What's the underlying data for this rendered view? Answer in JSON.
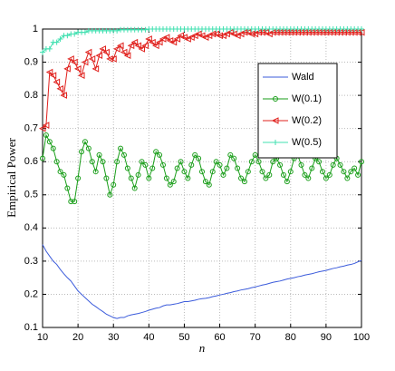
{
  "chart_data": {
    "type": "line",
    "x_label": "n",
    "y_label": "Empirical Power",
    "x": [
      10,
      11,
      12,
      13,
      14,
      15,
      16,
      17,
      18,
      19,
      20,
      21,
      22,
      23,
      24,
      25,
      26,
      27,
      28,
      29,
      30,
      31,
      32,
      33,
      34,
      35,
      36,
      37,
      38,
      39,
      40,
      41,
      42,
      43,
      44,
      45,
      46,
      47,
      48,
      49,
      50,
      51,
      52,
      53,
      54,
      55,
      56,
      57,
      58,
      59,
      60,
      61,
      62,
      63,
      64,
      65,
      66,
      67,
      68,
      69,
      70,
      71,
      72,
      73,
      74,
      75,
      76,
      77,
      78,
      79,
      80,
      81,
      82,
      83,
      84,
      85,
      86,
      87,
      88,
      89,
      90,
      91,
      92,
      93,
      94,
      95,
      96,
      97,
      98,
      99,
      100
    ],
    "series": [
      {
        "name": "Wald",
        "color": "#3b5bdb",
        "marker": "none",
        "values": [
          0.35,
          0.33,
          0.315,
          0.3,
          0.29,
          0.275,
          0.262,
          0.25,
          0.24,
          0.225,
          0.21,
          0.2,
          0.19,
          0.18,
          0.17,
          0.163,
          0.155,
          0.148,
          0.14,
          0.135,
          0.13,
          0.127,
          0.13,
          0.13,
          0.135,
          0.138,
          0.14,
          0.142,
          0.145,
          0.148,
          0.152,
          0.155,
          0.158,
          0.16,
          0.165,
          0.168,
          0.168,
          0.17,
          0.172,
          0.175,
          0.178,
          0.178,
          0.18,
          0.182,
          0.185,
          0.187,
          0.188,
          0.19,
          0.193,
          0.195,
          0.198,
          0.2,
          0.203,
          0.205,
          0.208,
          0.21,
          0.213,
          0.215,
          0.217,
          0.22,
          0.222,
          0.225,
          0.228,
          0.23,
          0.233,
          0.236,
          0.238,
          0.24,
          0.243,
          0.246,
          0.248,
          0.25,
          0.253,
          0.255,
          0.258,
          0.26,
          0.262,
          0.265,
          0.268,
          0.27,
          0.272,
          0.275,
          0.278,
          0.28,
          0.283,
          0.285,
          0.288,
          0.29,
          0.293,
          0.298,
          0.302
        ]
      },
      {
        "name": "W(0.1)",
        "color": "#1a9e1a",
        "marker": "circle",
        "values": [
          0.61,
          0.68,
          0.66,
          0.64,
          0.6,
          0.57,
          0.56,
          0.52,
          0.48,
          0.48,
          0.55,
          0.63,
          0.66,
          0.64,
          0.6,
          0.57,
          0.62,
          0.6,
          0.55,
          0.5,
          0.53,
          0.6,
          0.64,
          0.62,
          0.58,
          0.55,
          0.52,
          0.56,
          0.6,
          0.59,
          0.55,
          0.58,
          0.63,
          0.62,
          0.59,
          0.55,
          0.53,
          0.54,
          0.58,
          0.6,
          0.57,
          0.55,
          0.59,
          0.62,
          0.61,
          0.57,
          0.54,
          0.53,
          0.57,
          0.6,
          0.59,
          0.56,
          0.58,
          0.62,
          0.61,
          0.58,
          0.55,
          0.54,
          0.57,
          0.6,
          0.62,
          0.6,
          0.57,
          0.55,
          0.56,
          0.6,
          0.61,
          0.59,
          0.56,
          0.54,
          0.57,
          0.61,
          0.62,
          0.59,
          0.56,
          0.55,
          0.58,
          0.61,
          0.6,
          0.57,
          0.55,
          0.56,
          0.59,
          0.61,
          0.59,
          0.57,
          0.55,
          0.57,
          0.58,
          0.56,
          0.6
        ]
      },
      {
        "name": "W(0.2)",
        "color": "#e0201c",
        "marker": "triangle-left",
        "values": [
          0.7,
          0.71,
          0.87,
          0.86,
          0.84,
          0.82,
          0.8,
          0.88,
          0.91,
          0.9,
          0.88,
          0.86,
          0.9,
          0.93,
          0.91,
          0.88,
          0.92,
          0.94,
          0.93,
          0.91,
          0.91,
          0.94,
          0.95,
          0.93,
          0.92,
          0.95,
          0.96,
          0.95,
          0.94,
          0.95,
          0.97,
          0.96,
          0.95,
          0.96,
          0.97,
          0.975,
          0.965,
          0.96,
          0.97,
          0.98,
          0.975,
          0.97,
          0.975,
          0.98,
          0.985,
          0.98,
          0.975,
          0.98,
          0.985,
          0.985,
          0.98,
          0.98,
          0.985,
          0.99,
          0.985,
          0.98,
          0.985,
          0.99,
          0.99,
          0.985,
          0.985,
          0.99,
          0.99,
          0.99,
          0.985,
          0.99,
          0.99,
          0.99,
          0.99,
          0.99,
          0.99,
          0.99,
          0.99,
          0.99,
          0.99,
          0.99,
          0.99,
          0.99,
          0.99,
          0.99,
          0.99,
          0.99,
          0.99,
          0.99,
          0.99,
          0.99,
          0.99,
          0.99,
          0.99,
          0.99,
          0.99
        ]
      },
      {
        "name": "W(0.5)",
        "color": "#40e0b0",
        "marker": "plus",
        "values": [
          0.93,
          0.94,
          0.94,
          0.96,
          0.96,
          0.97,
          0.98,
          0.98,
          0.985,
          0.985,
          0.99,
          0.99,
          0.99,
          0.995,
          0.995,
          0.995,
          0.995,
          0.995,
          0.995,
          0.995,
          0.995,
          0.995,
          0.998,
          0.998,
          0.998,
          0.998,
          0.998,
          0.998,
          0.998,
          0.998,
          1,
          1,
          1,
          1,
          1,
          1,
          1,
          1,
          1,
          1,
          1,
          1,
          1,
          1,
          1,
          1,
          1,
          1,
          1,
          1,
          1,
          1,
          1,
          1,
          1,
          1,
          1,
          1,
          1,
          1,
          1,
          1,
          1,
          1,
          1,
          1,
          1,
          1,
          1,
          1,
          1,
          1,
          1,
          1,
          1,
          1,
          1,
          1,
          1,
          1,
          1,
          1,
          1,
          1,
          1,
          1,
          1,
          1,
          1,
          1,
          1
        ]
      }
    ],
    "xlim": [
      10,
      100
    ],
    "xticks": [
      10,
      20,
      30,
      40,
      50,
      60,
      70,
      80,
      90,
      100
    ],
    "ylim": [
      0.1,
      1
    ],
    "yticks": [
      0.1,
      0.2,
      0.3,
      0.4,
      0.5,
      0.6,
      0.7,
      0.8,
      0.9,
      1
    ],
    "grid": true,
    "legend": "upper right"
  }
}
